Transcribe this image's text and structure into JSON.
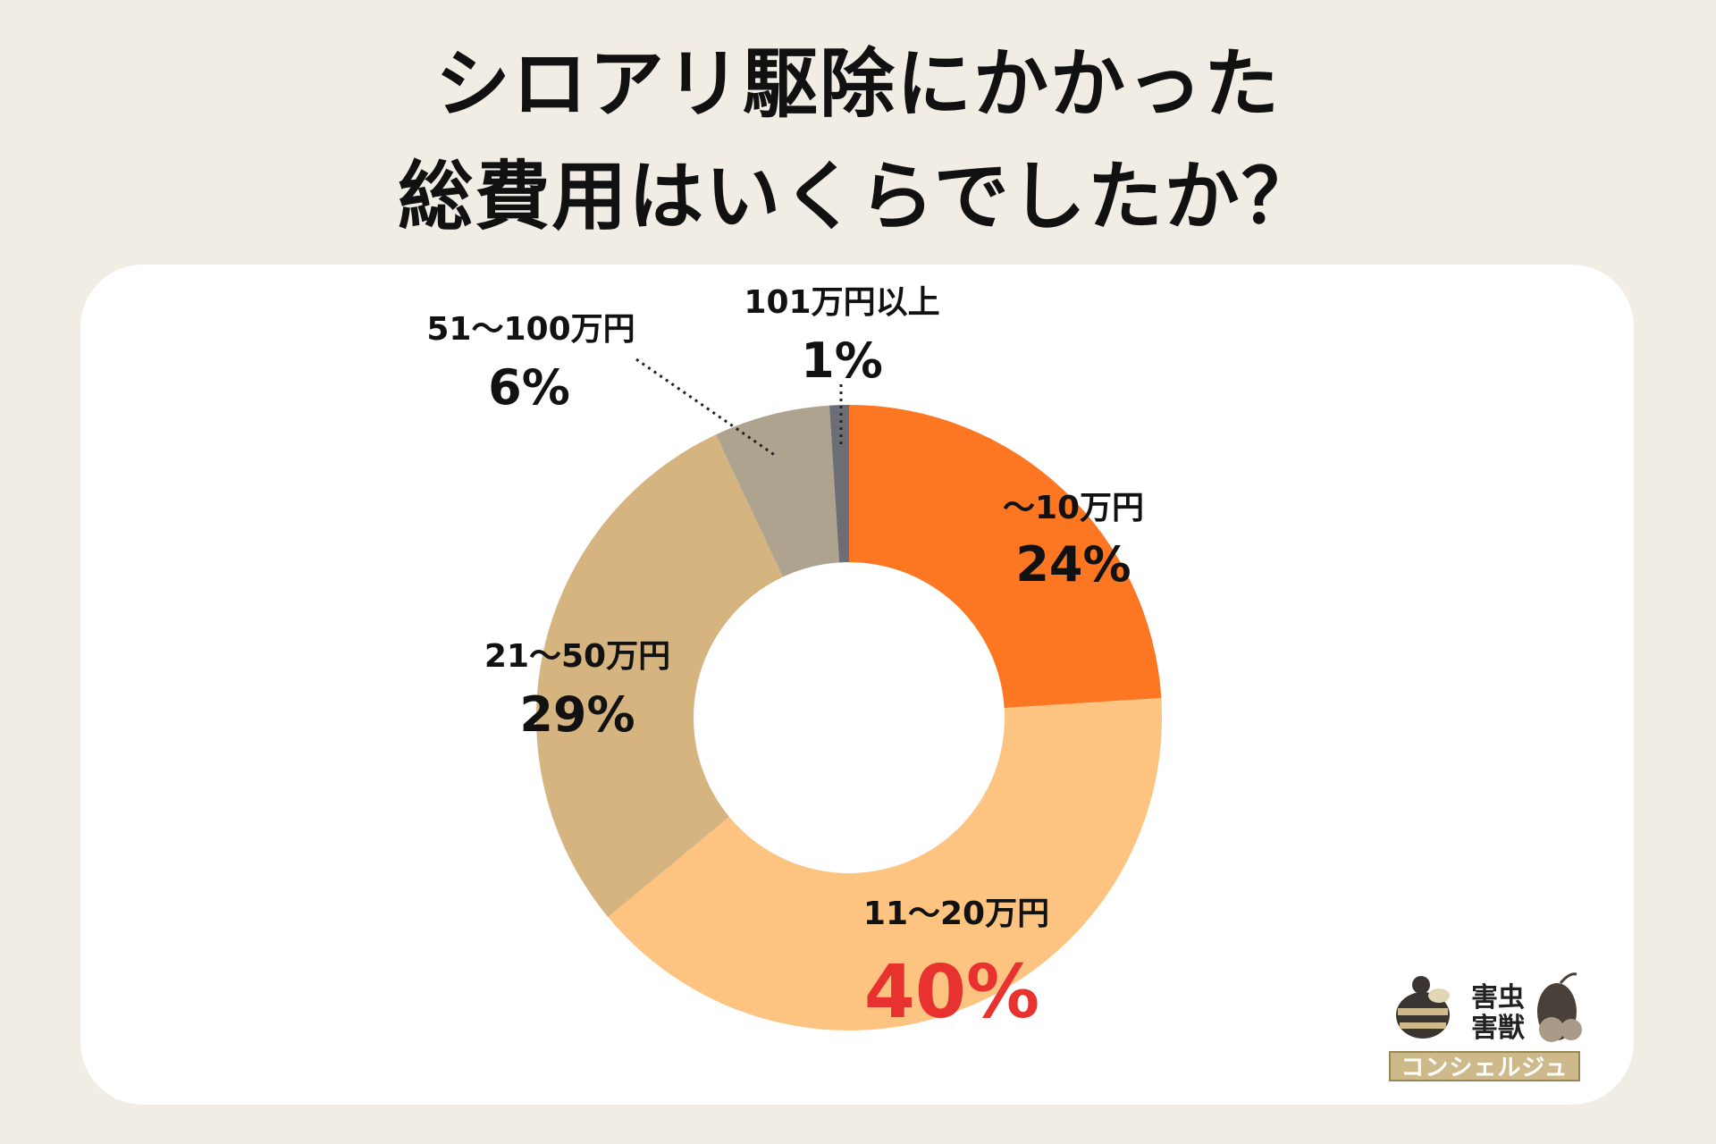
{
  "title_line1": "シロアリ駆除にかかった",
  "title_line2": "総費用はいくらでしたか？",
  "chart_data": {
    "type": "pie",
    "donut": true,
    "categories": [
      "〜10万円",
      "11〜20万円",
      "21〜50万円",
      "51〜100万円",
      "101万円以上"
    ],
    "values": [
      24,
      40,
      29,
      6,
      1
    ],
    "value_labels": [
      "24%",
      "40%",
      "29%",
      "6%",
      "1%"
    ],
    "colors": [
      "#fd7722",
      "#fdc380",
      "#d6b480",
      "#aea38f",
      "#6b6e75"
    ],
    "highlight_color": "#e8322f",
    "highlight_index": 1,
    "start_angle": "top",
    "direction": "clockwise"
  },
  "logo": {
    "line1": "害虫",
    "line2": "害獣",
    "band": "コンシェルジュ",
    "icons": [
      "bee-icon",
      "mouse-icon"
    ]
  }
}
